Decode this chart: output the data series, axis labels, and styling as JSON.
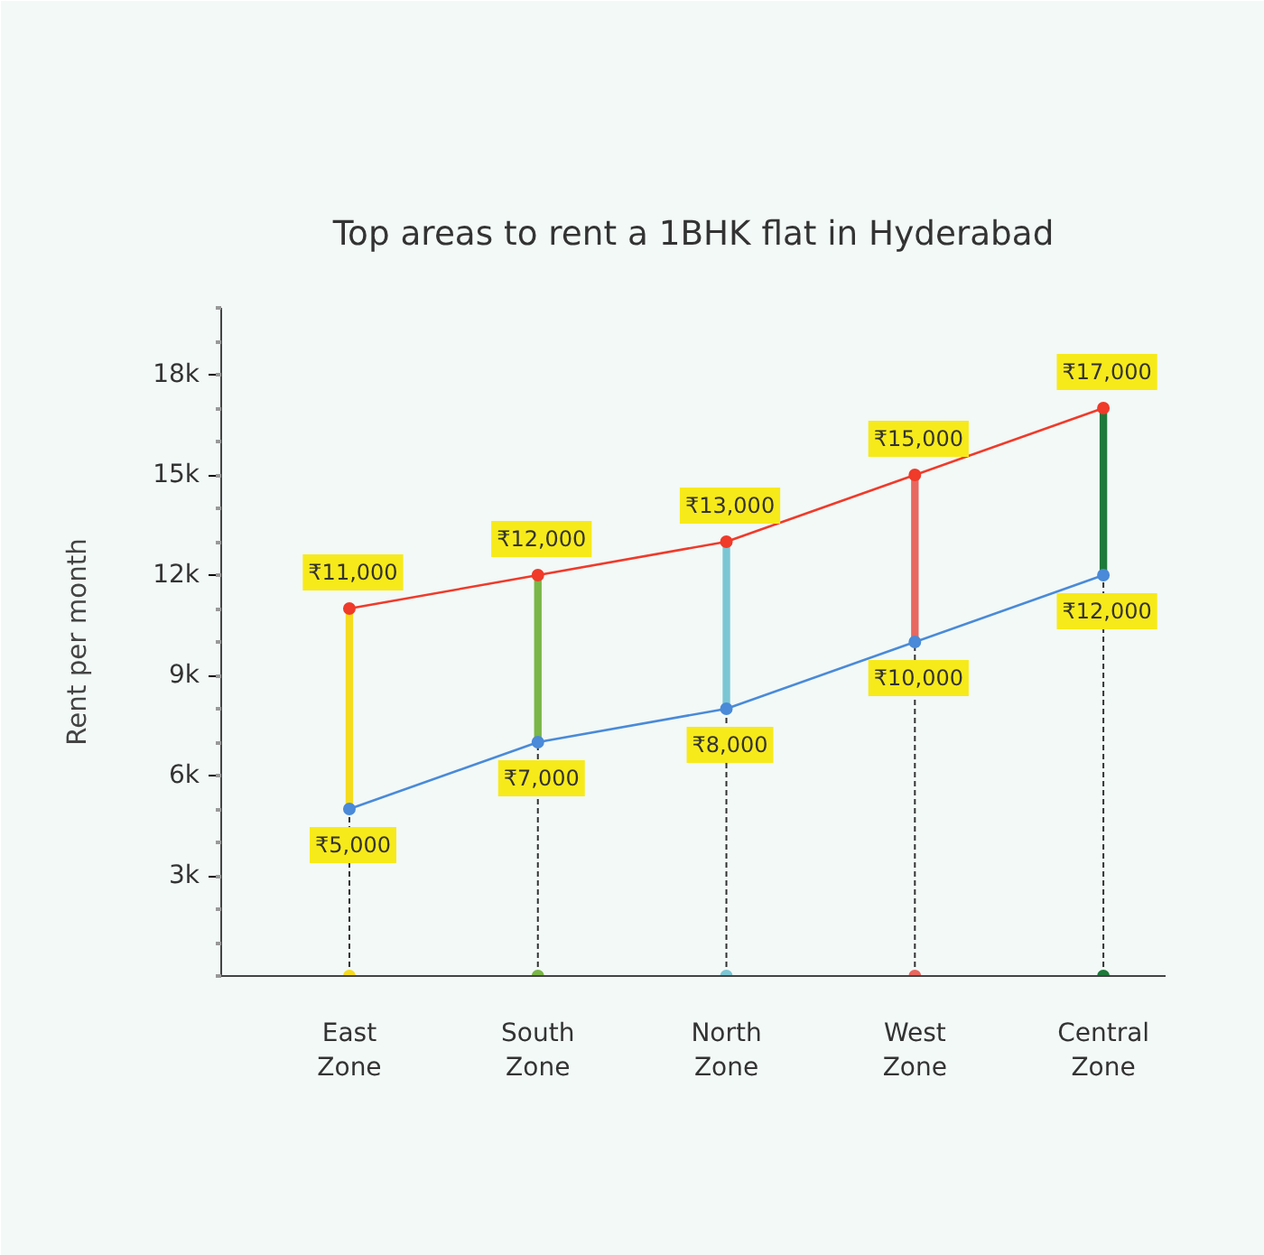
{
  "chart_data": {
    "type": "line",
    "title": "Top areas to rent a 1BHK flat in Hyderabad",
    "ylabel": "Rent per month",
    "categories": [
      "East Zone",
      "South Zone",
      "North Zone",
      "West Zone",
      "Central Zone"
    ],
    "ylim": [
      0,
      20000
    ],
    "yticks": [
      {
        "value": 3000,
        "label": "3k"
      },
      {
        "value": 6000,
        "label": "6k"
      },
      {
        "value": 9000,
        "label": "9k"
      },
      {
        "value": 12000,
        "label": "12k"
      },
      {
        "value": 15000,
        "label": "15k"
      },
      {
        "value": 18000,
        "label": "18k"
      }
    ],
    "grid": false,
    "marker": "circle",
    "series": [
      {
        "type": "bar",
        "base": [
          5000,
          7000,
          8000,
          10000,
          12000
        ],
        "values": [
          6000,
          5000,
          5000,
          5000,
          5000
        ],
        "colors": [
          "#f5dc1e",
          "#7ab648",
          "#7cc6d4",
          "#e8675f",
          "#1e7a3a"
        ]
      },
      {
        "color": "#4a8ad8",
        "values": [
          5000,
          7000,
          8000,
          10000,
          12000
        ],
        "value_labels": [
          "₹5,000",
          "₹7,000",
          "₹8,000",
          "₹10,000",
          "₹12,000"
        ]
      },
      {
        "color": "#f03a2a",
        "values": [
          11000,
          12000,
          13000,
          15000,
          17000
        ],
        "value_labels": [
          "₹11,000",
          "₹12,000",
          "₹13,000",
          "₹15,000",
          "₹17,000"
        ]
      }
    ]
  }
}
